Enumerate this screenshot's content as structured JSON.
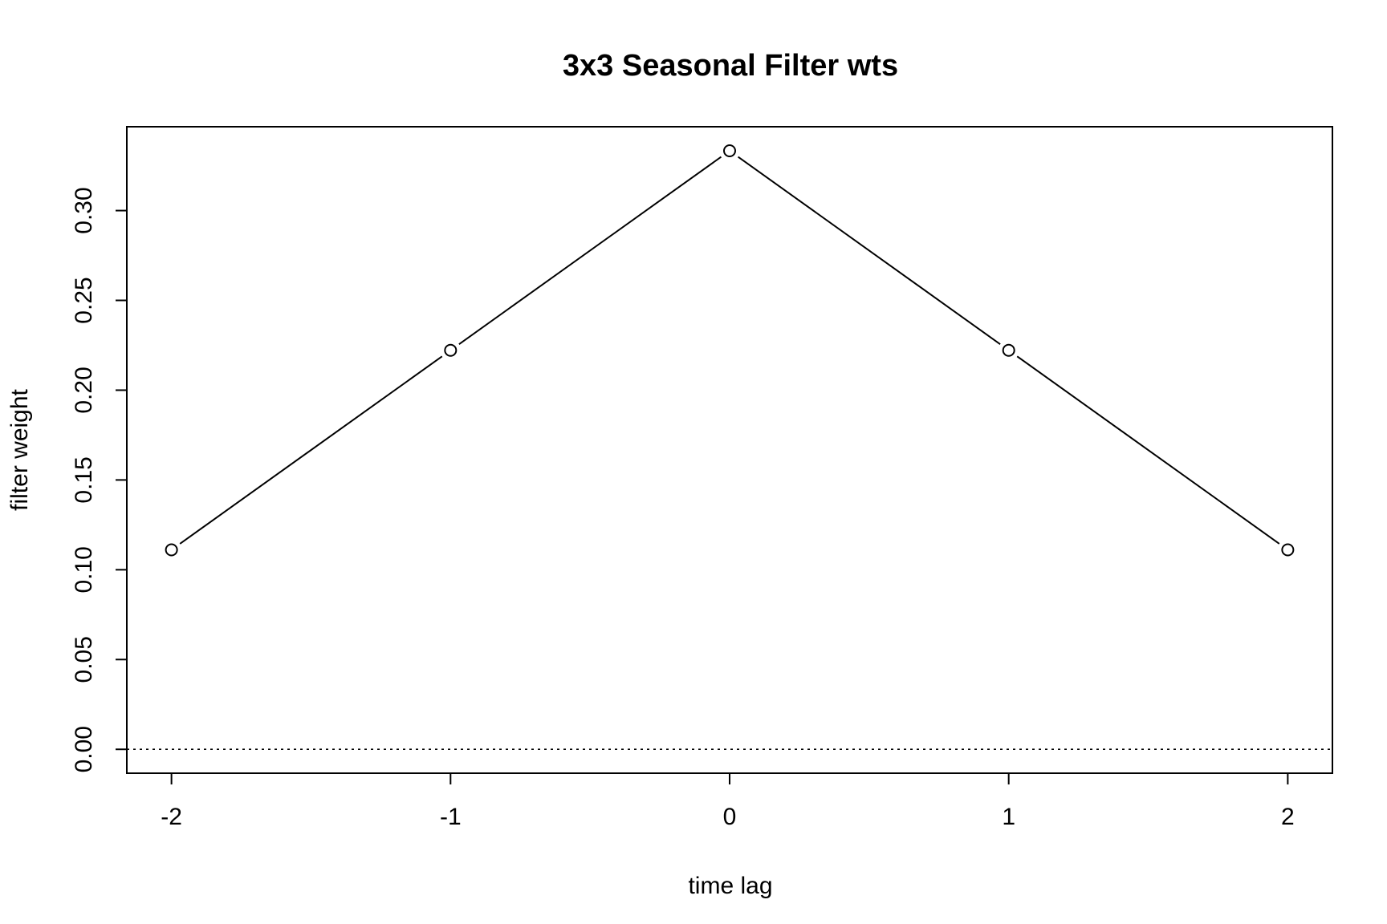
{
  "chart_data": {
    "type": "line",
    "title": "3x3 Seasonal Filter wts",
    "xlabel": "time lag",
    "ylabel": "filter weight",
    "x": [
      -2,
      -1,
      0,
      1,
      2
    ],
    "series": [
      {
        "values": [
          0.1111,
          0.2222,
          0.3333,
          0.2222,
          0.1111
        ]
      }
    ],
    "xticks": [
      -2,
      -1,
      0,
      1,
      2
    ],
    "xtick_labels": [
      "-2",
      "-1",
      "0",
      "1",
      "2"
    ],
    "yticks": [
      0,
      0.05,
      0.1,
      0.15,
      0.2,
      0.25,
      0.3
    ],
    "ytick_labels": [
      "0.00",
      "0.05",
      "0.10",
      "0.15",
      "0.20",
      "0.25",
      "0.30"
    ],
    "xlim": [
      -2.16,
      2.16
    ],
    "ylim": [
      -0.0133,
      0.3467
    ],
    "reference_line": {
      "y": 0,
      "style": "dotted"
    },
    "grid": false,
    "markers": "open-circle",
    "colors": {
      "line": "#000000",
      "marker_fill": "#ffffff"
    }
  }
}
